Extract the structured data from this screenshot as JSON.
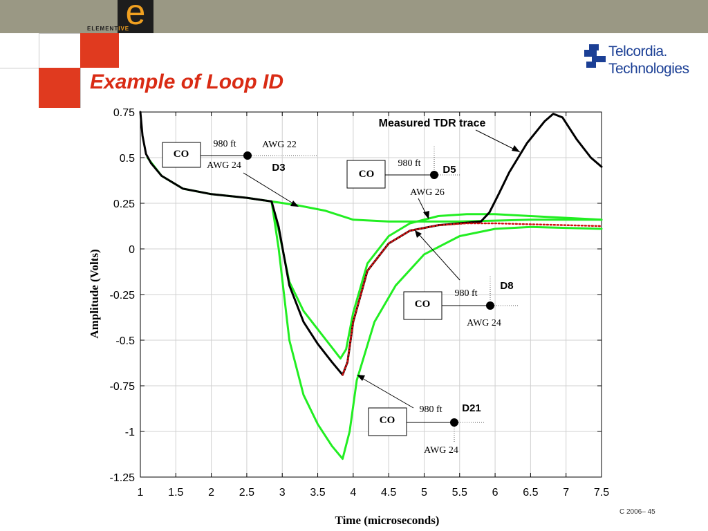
{
  "slide": {
    "title": "Example of Loop ID",
    "logo_text_a": "ELEMENT",
    "logo_text_b": "IVE",
    "logo_letter": "e",
    "brand_line1": "Telcordia.",
    "brand_line2": "Technologies",
    "footer": "C 2006– 45",
    "colors": {
      "accent_red": "#e03a1f",
      "title_red": "#d92b14",
      "topbar": "#9a9884",
      "brand_blue": "#1b3f95"
    }
  },
  "chart_data": {
    "type": "line",
    "xlabel": "Time (microseconds)",
    "ylabel": "Amplitude (Volts)",
    "xlim": [
      1,
      7.5
    ],
    "ylim": [
      -1.25,
      0.75
    ],
    "xticks": [
      "1",
      "1.5",
      "2",
      "2.5",
      "3",
      "3.5",
      "4",
      "4.5",
      "5",
      "5.5",
      "6",
      "6.5",
      "7",
      "7.5"
    ],
    "yticks": [
      "0.75",
      "0.5",
      "0.25",
      "0",
      "-0.25",
      "-0.5",
      "-0.75",
      "-1",
      "-1.25"
    ],
    "grid": true,
    "series": [
      {
        "color": "#000000",
        "style": "solid",
        "x": [
          1.0,
          1.03,
          1.08,
          1.15,
          1.3,
          1.6,
          2.0,
          2.5,
          2.85,
          2.95,
          3.1,
          3.3,
          3.5,
          3.7,
          3.85,
          3.92,
          4.0,
          4.2,
          4.5,
          4.8,
          5.2,
          5.5,
          5.8,
          5.92,
          6.05,
          6.2,
          6.45,
          6.7,
          6.82,
          6.95,
          7.15,
          7.35,
          7.5
        ],
        "y": [
          0.75,
          0.62,
          0.52,
          0.47,
          0.4,
          0.33,
          0.3,
          0.28,
          0.26,
          0.12,
          -0.2,
          -0.4,
          -0.52,
          -0.62,
          -0.69,
          -0.62,
          -0.4,
          -0.12,
          0.03,
          0.1,
          0.13,
          0.14,
          0.15,
          0.2,
          0.3,
          0.42,
          0.58,
          0.7,
          0.74,
          0.72,
          0.6,
          0.5,
          0.45
        ]
      },
      {
        "color": "#d01010",
        "style": "dotted",
        "x": [
          3.85,
          3.92,
          4.0,
          4.2,
          4.5,
          4.8,
          5.2,
          5.6,
          6.0,
          6.5,
          7.0,
          7.5
        ],
        "y": [
          -0.69,
          -0.62,
          -0.4,
          -0.12,
          0.03,
          0.1,
          0.13,
          0.14,
          0.14,
          0.135,
          0.13,
          0.125
        ]
      },
      {
        "color": "#22ee22",
        "style": "solid",
        "x": [
          1.1,
          1.3,
          1.6,
          2.0,
          2.5,
          2.85,
          3.2,
          3.6,
          4.0,
          4.5,
          5.0,
          5.5,
          6.0,
          6.5,
          7.0,
          7.5
        ],
        "y": [
          0.5,
          0.4,
          0.33,
          0.3,
          0.28,
          0.26,
          0.24,
          0.21,
          0.16,
          0.15,
          0.15,
          0.15,
          0.155,
          0.16,
          0.16,
          0.16
        ]
      },
      {
        "color": "#22ee22",
        "style": "solid",
        "x": [
          2.85,
          2.95,
          3.1,
          3.3,
          3.5,
          3.7,
          3.82,
          3.9,
          4.0,
          4.2,
          4.5,
          4.8,
          5.2,
          5.6,
          6.0,
          6.5,
          7.0,
          7.5
        ],
        "y": [
          0.26,
          0.1,
          -0.18,
          -0.34,
          -0.44,
          -0.54,
          -0.6,
          -0.55,
          -0.35,
          -0.08,
          0.07,
          0.14,
          0.18,
          0.19,
          0.19,
          0.18,
          0.17,
          0.16
        ]
      },
      {
        "color": "#22ee22",
        "style": "solid",
        "x": [
          2.85,
          2.95,
          3.1,
          3.3,
          3.5,
          3.7,
          3.85,
          3.95,
          4.05,
          4.3,
          4.6,
          5.0,
          5.5,
          6.0,
          6.5,
          7.0,
          7.5
        ],
        "y": [
          0.26,
          0.0,
          -0.5,
          -0.8,
          -0.96,
          -1.08,
          -1.15,
          -1.0,
          -0.72,
          -0.4,
          -0.2,
          -0.03,
          0.07,
          0.11,
          0.12,
          0.115,
          0.11
        ]
      }
    ],
    "annotations": {
      "measured_label": "Measured TDR trace",
      "d3": {
        "label": "D3",
        "co": "CO",
        "length": "980 ft",
        "gauge_a": "AWG 22",
        "gauge_b": "AWG 24"
      },
      "d5": {
        "label": "D5",
        "co": "CO",
        "length": "980 ft",
        "gauge": "AWG 26"
      },
      "d8": {
        "label": "D8",
        "co": "CO",
        "length": "980 ft",
        "gauge": "AWG 24"
      },
      "d21": {
        "label": "D21",
        "co": "CO",
        "length": "980 ft",
        "gauge": "AWG 24"
      }
    }
  }
}
